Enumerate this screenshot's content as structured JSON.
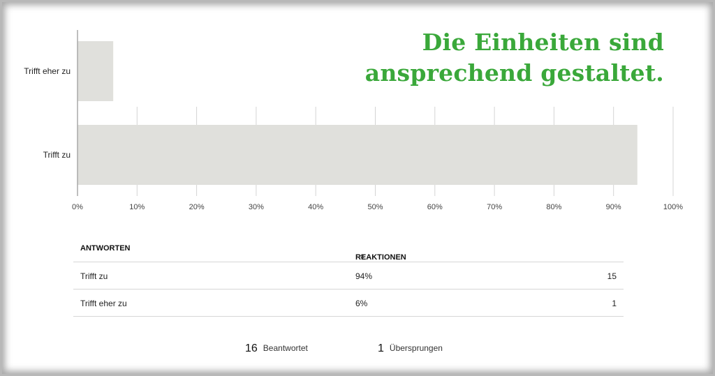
{
  "headline": {
    "line1": "Die Einheiten sind",
    "line2": "ansprechend gestaltet."
  },
  "colors": {
    "bar": "#e0e0dc",
    "headline": "#3aa83a",
    "axis": "#a8a8a8",
    "grid": "#d4d4d4"
  },
  "chart_data": {
    "type": "bar",
    "orientation": "horizontal",
    "categories": [
      "Trifft eher zu",
      "Trifft zu"
    ],
    "values": [
      6,
      94
    ],
    "xlim": [
      0,
      100
    ],
    "xticks": [
      "0%",
      "10%",
      "20%",
      "30%",
      "40%",
      "50%",
      "60%",
      "70%",
      "80%",
      "90%",
      "100%"
    ],
    "grid": true
  },
  "table": {
    "headers": [
      "ANTWORTEN",
      "REAKTIONEN"
    ],
    "sort_icon": "sort-icon",
    "rows": [
      {
        "answer": "Trifft zu",
        "percent": "94%",
        "count": "15"
      },
      {
        "answer": "Trifft eher zu",
        "percent": "6%",
        "count": "1"
      }
    ]
  },
  "footer": {
    "answered_count": "16",
    "answered_label": "Beantwortet",
    "skipped_count": "1",
    "skipped_label": "Übersprungen"
  }
}
